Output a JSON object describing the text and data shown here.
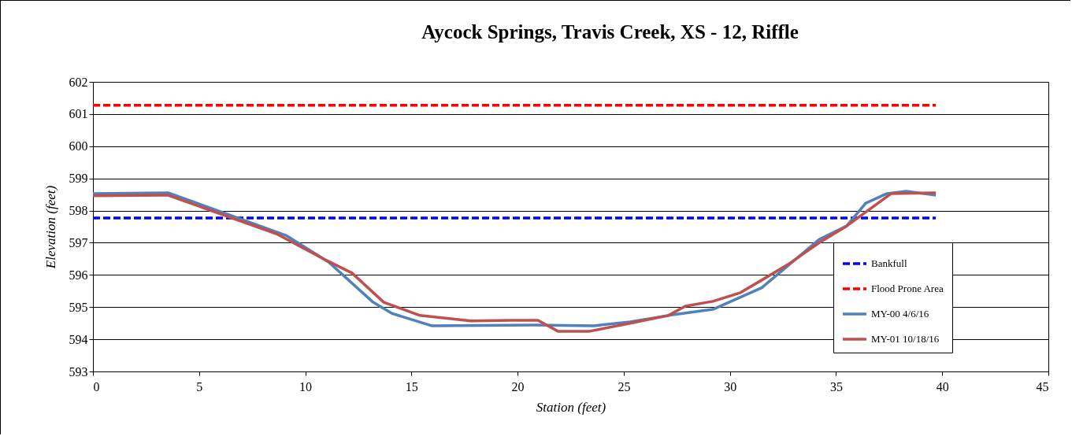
{
  "chart_data": {
    "type": "line",
    "title": "Aycock Springs, Travis Creek, XS - 12, Riffle",
    "xlabel": "Station (feet)",
    "ylabel": "Elevation (feet)",
    "xlim": [
      0,
      45
    ],
    "xticks": [
      0,
      5,
      10,
      15,
      20,
      25,
      30,
      35,
      40,
      45
    ],
    "ylim": [
      593,
      602
    ],
    "yticks": [
      593,
      594,
      595,
      596,
      597,
      598,
      599,
      600,
      601,
      602
    ],
    "grid": "y",
    "legend": "right",
    "marker": "none",
    "series": [
      {
        "name": "Bankfull",
        "color": "#0000ff",
        "line_style": "dashed",
        "x": [
          0,
          39.7
        ],
        "values": [
          597.77,
          597.77
        ]
      },
      {
        "name": "Flood Prone Area",
        "color": "#ff0000",
        "line_style": "dashed",
        "x": [
          0,
          39.7
        ],
        "values": [
          601.27,
          601.27
        ]
      },
      {
        "name": "MY-00 4/6/16",
        "color": "#4f81bd",
        "line_style": "solid",
        "x": [
          0,
          3.56,
          9.09,
          11.1,
          13.2,
          14.1,
          15.95,
          20.8,
          23.6,
          25.3,
          27.1,
          29.2,
          31.5,
          34.2,
          35.5,
          36.4,
          37.4,
          38.3,
          39.7
        ],
        "values": [
          598.53,
          598.55,
          597.23,
          596.4,
          595.15,
          594.8,
          594.42,
          594.44,
          594.42,
          594.54,
          594.74,
          594.93,
          595.6,
          597.1,
          597.52,
          598.23,
          598.53,
          598.6,
          598.48
        ]
      },
      {
        "name": "MY-01 10/18/16",
        "color": "#c0504d",
        "line_style": "solid",
        "x": [
          0,
          3.52,
          8.64,
          11.0,
          12.2,
          13.7,
          15.4,
          17.8,
          19.66,
          20.96,
          21.9,
          23.4,
          25.3,
          27.1,
          27.9,
          29.2,
          30.5,
          31.5,
          32.75,
          34.2,
          35.5,
          37.6,
          39.7
        ],
        "values": [
          598.46,
          598.48,
          597.28,
          596.45,
          596.06,
          595.15,
          594.74,
          594.57,
          594.59,
          594.59,
          594.25,
          594.25,
          594.5,
          594.74,
          595.03,
          595.18,
          595.45,
          595.84,
          596.33,
          597.0,
          597.52,
          598.53,
          598.55
        ]
      }
    ]
  }
}
